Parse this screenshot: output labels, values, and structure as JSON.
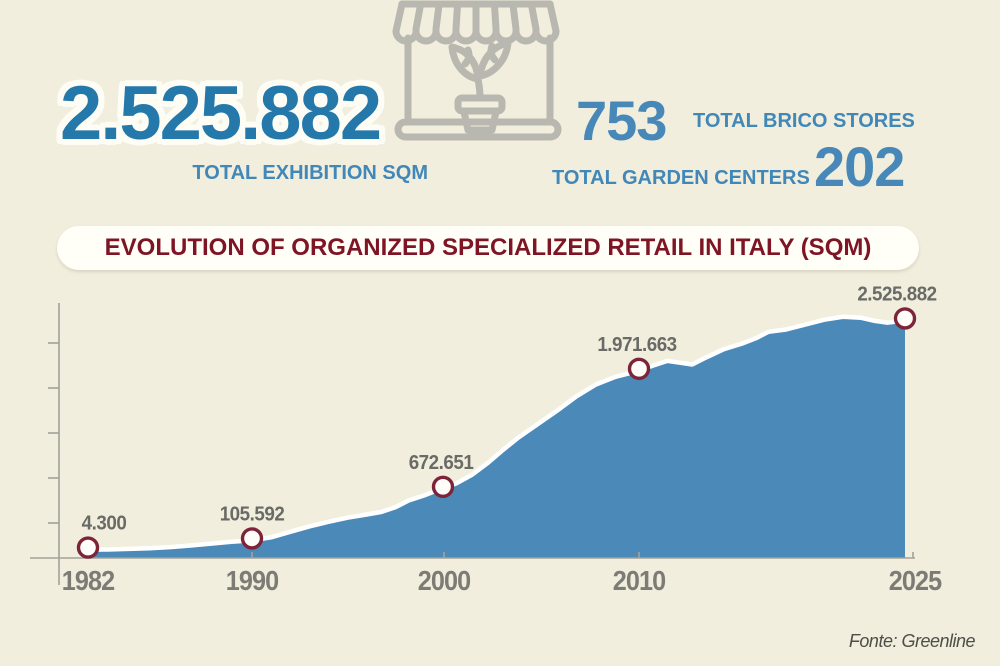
{
  "colors": {
    "background": "#f1eedd",
    "big_number_blue": "#2478aa",
    "stat_blue": "#4788b8",
    "label_blue": "#4187b8",
    "area_blue": "#4b8ab8",
    "curve_stroke": "#ffffff",
    "banner_bg": "#fffef7",
    "maroon_title": "#7e1424",
    "marker_border": "#7d2438",
    "marker_fill": "#fffefa",
    "icon_gray": "#b9b8b0",
    "axis_gray": "#a3a29a",
    "data_label_gray": "#6a6a66",
    "tick_label_gray": "#7c7b76"
  },
  "stats": {
    "exhibition_value": "2.525.882",
    "exhibition_label": "TOTAL EXHIBITION SQM",
    "brico_value": "753",
    "brico_label": "TOTAL BRICO STORES",
    "garden_label": "TOTAL GARDEN CENTERS",
    "garden_value": "202"
  },
  "banner": {
    "title": "EVOLUTION OF ORGANIZED SPECIALIZED RETAIL IN ITALY (SQM)"
  },
  "footer": {
    "source": "Fonte: Greenline"
  },
  "icon": {
    "name": "garden-store-icon"
  },
  "chart_data": {
    "type": "area",
    "title": "EVOLUTION OF ORGANIZED SPECIALIZED RETAIL IN ITALY (SQM)",
    "unit": "sqm",
    "xlabel": "",
    "ylabel": "",
    "grid": false,
    "y_tick_labels_shown": false,
    "ylim": [
      0,
      2700000
    ],
    "x_tick_labels": [
      "1982",
      "1990",
      "2000",
      "2010",
      "2025"
    ],
    "labeled_points": [
      {
        "year": 1982,
        "value": 4300,
        "label": "4.300"
      },
      {
        "year": 1990,
        "value": 105592,
        "label": "105.592"
      },
      {
        "year": 2000,
        "value": 672651,
        "label": "672.651"
      },
      {
        "year": 2010,
        "value": 1971663,
        "label": "1.971.663"
      },
      {
        "year": 2025,
        "value": 2525882,
        "label": "2.525.882"
      }
    ],
    "curve_profile": [
      [
        1982,
        4300
      ],
      [
        1983,
        6000
      ],
      [
        1984,
        12000
      ],
      [
        1985,
        20000
      ],
      [
        1986,
        32000
      ],
      [
        1987,
        50000
      ],
      [
        1988,
        70000
      ],
      [
        1989,
        90000
      ],
      [
        1990,
        105592
      ],
      [
        1991,
        140000
      ],
      [
        1992,
        200000
      ],
      [
        1993,
        260000
      ],
      [
        1994,
        310000
      ],
      [
        1995,
        355000
      ],
      [
        1996,
        390000
      ],
      [
        1996.8,
        420000
      ],
      [
        1997.5,
        470000
      ],
      [
        1998.2,
        545000
      ],
      [
        1999,
        600000
      ],
      [
        1999.5,
        640000
      ],
      [
        2000,
        672651
      ],
      [
        2000.7,
        735000
      ],
      [
        2001.5,
        830000
      ],
      [
        2002.3,
        960000
      ],
      [
        2003,
        1090000
      ],
      [
        2003.8,
        1230000
      ],
      [
        2004.8,
        1380000
      ],
      [
        2005.8,
        1530000
      ],
      [
        2006.8,
        1690000
      ],
      [
        2007.8,
        1820000
      ],
      [
        2008.8,
        1905000
      ],
      [
        2010,
        1971663
      ],
      [
        2010.8,
        2030000
      ],
      [
        2011.6,
        2080000
      ],
      [
        2012.3,
        2060000
      ],
      [
        2013,
        2040000
      ],
      [
        2013.8,
        2120000
      ],
      [
        2014.8,
        2210000
      ],
      [
        2015.8,
        2270000
      ],
      [
        2016.6,
        2330000
      ],
      [
        2017.3,
        2400000
      ],
      [
        2018.3,
        2425000
      ],
      [
        2019.4,
        2480000
      ],
      [
        2020.5,
        2535000
      ],
      [
        2021.5,
        2565000
      ],
      [
        2022.5,
        2555000
      ],
      [
        2023.3,
        2520000
      ],
      [
        2024,
        2500000
      ],
      [
        2025,
        2525882
      ]
    ],
    "source": "Fonte: Greenline"
  }
}
